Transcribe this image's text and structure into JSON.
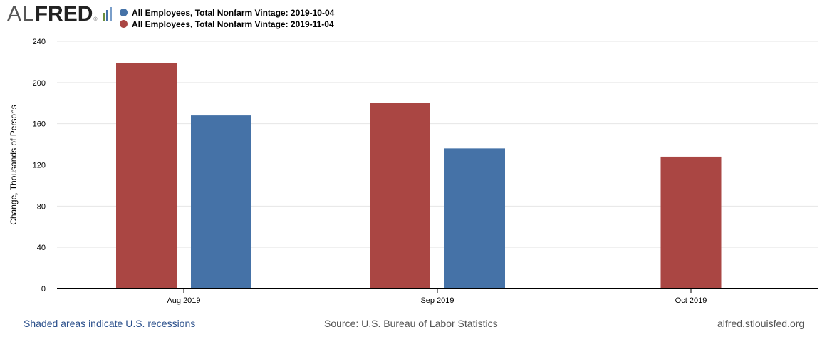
{
  "logo": {
    "al": "AL",
    "fred": "FRED",
    "reg": "®"
  },
  "legend": [
    {
      "label": "All Employees, Total Nonfarm Vintage: 2019-10-04",
      "color": "#4572a7"
    },
    {
      "label": "All Employees, Total Nonfarm Vintage: 2019-11-04",
      "color": "#aa4643"
    }
  ],
  "footer": {
    "left": "Shaded areas indicate U.S. recessions",
    "middle": "Source: U.S. Bureau of Labor Statistics",
    "right": "alfred.stlouisfed.org"
  },
  "chart_data": {
    "type": "bar",
    "categories": [
      "Aug 2019",
      "Sep 2019",
      "Oct 2019"
    ],
    "series": [
      {
        "name": "All Employees, Total Nonfarm Vintage: 2019-11-04",
        "color": "#aa4643",
        "values": [
          219,
          180,
          128
        ]
      },
      {
        "name": "All Employees, Total Nonfarm Vintage: 2019-10-04",
        "color": "#4572a7",
        "values": [
          168,
          136,
          null
        ]
      }
    ],
    "ylabel": "Change, Thousands of Persons",
    "ylim": [
      0,
      240
    ],
    "yticks": [
      0,
      40,
      80,
      120,
      160,
      200,
      240
    ],
    "grid": true,
    "legend_position": "top-left"
  }
}
